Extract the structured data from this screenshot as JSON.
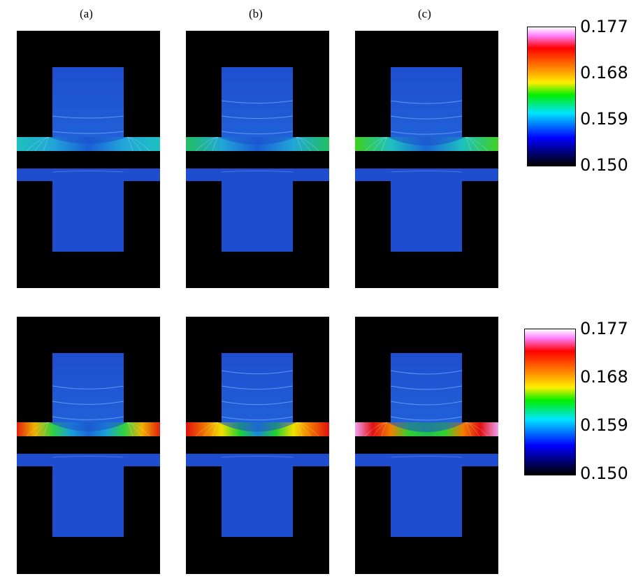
{
  "column_labels": [
    "(a)",
    "(b)",
    "(c)"
  ],
  "colorbar": {
    "ticks": [
      "0.177",
      "0.168",
      "0.159",
      "0.150"
    ],
    "stops": [
      {
        "offset": 0.0,
        "color": "#ffffff"
      },
      {
        "offset": 0.06,
        "color": "#ff80ff"
      },
      {
        "offset": 0.15,
        "color": "#ff0000"
      },
      {
        "offset": 0.3,
        "color": "#ff8c00"
      },
      {
        "offset": 0.4,
        "color": "#ffee00"
      },
      {
        "offset": 0.49,
        "color": "#00ee00"
      },
      {
        "offset": 0.62,
        "color": "#00e5ff"
      },
      {
        "offset": 0.8,
        "color": "#0000ff"
      },
      {
        "offset": 1.0,
        "color": "#000000"
      }
    ]
  },
  "colors": {
    "background": "#000000",
    "body_blue": "#1e4ecf",
    "contour": "#7fb0ff"
  },
  "rows": [
    {
      "name": "top",
      "panels": [
        {
          "band": [
            "#1ec0c0",
            "#22a6d8",
            "#1a5fd6",
            "#22a6d8",
            "#1ec0c0"
          ],
          "edge_hot": "#22c84a",
          "intensity": 0.3
        },
        {
          "band": [
            "#22c060",
            "#22a6d8",
            "#1a5fd6",
            "#22a6d8",
            "#22c060"
          ],
          "edge_hot": "#40d020",
          "intensity": 0.5
        },
        {
          "band": [
            "#40d020",
            "#1ec0c0",
            "#1a6ad6",
            "#1ec0c0",
            "#40d020"
          ],
          "edge_hot": "#90e020",
          "intensity": 0.7
        }
      ]
    },
    {
      "name": "bottom",
      "panels": [
        {
          "band": [
            "#e02010",
            "#f0b000",
            "#30d040",
            "#1aa0d8",
            "#1a6ad6",
            "#1aa0d8",
            "#30d040",
            "#f0b000",
            "#e02010"
          ],
          "edge_hot": "#ff2010",
          "intensity": 0.8
        },
        {
          "band": [
            "#e01010",
            "#f07000",
            "#f0e000",
            "#20d030",
            "#1a8ad8",
            "#20d030",
            "#f0e000",
            "#f07000",
            "#e01010"
          ],
          "edge_hot": "#ff1010",
          "intensity": 0.9
        },
        {
          "band": [
            "#f0a0f0",
            "#e01010",
            "#f08000",
            "#30d030",
            "#20c050",
            "#30d030",
            "#f08000",
            "#e01010",
            "#f0a0f0"
          ],
          "edge_hot": "#ff90ff",
          "intensity": 1.0
        }
      ]
    }
  ]
}
